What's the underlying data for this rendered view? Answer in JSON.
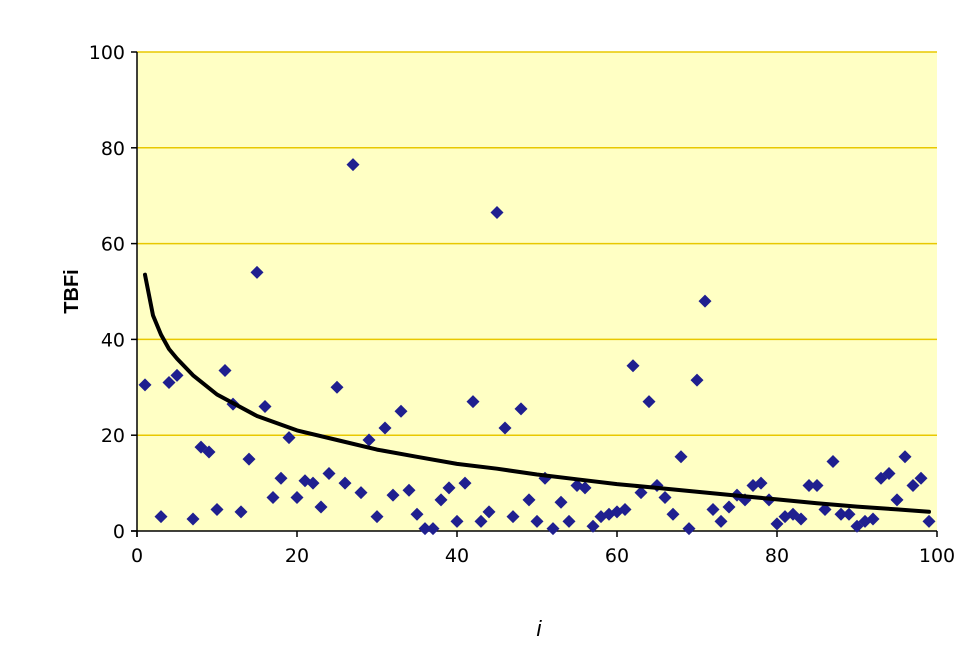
{
  "chart_data": {
    "type": "scatter",
    "title": "",
    "xlabel": "i",
    "ylabel": "TBFi",
    "xlim": [
      0,
      100
    ],
    "ylim": [
      0,
      100
    ],
    "xticks": [
      "0",
      "20",
      "40",
      "60",
      "80",
      "100"
    ],
    "yticks": [
      "0",
      "20",
      "40",
      "60",
      "80",
      "100"
    ],
    "grid": "horizontal",
    "colors": {
      "plot_background": "#FFFFC4",
      "gridline": "#E8C800",
      "marker": "#1F1F8F",
      "trend_line": "#000000"
    },
    "series": [
      {
        "type": "scatter",
        "marker": "diamond",
        "points": [
          [
            1,
            30.5
          ],
          [
            3,
            3
          ],
          [
            4,
            31
          ],
          [
            5,
            32.5
          ],
          [
            7,
            2.5
          ],
          [
            8,
            17.5
          ],
          [
            9,
            16.5
          ],
          [
            10,
            4.5
          ],
          [
            11,
            33.5
          ],
          [
            12,
            26.5
          ],
          [
            13,
            4
          ],
          [
            14,
            15
          ],
          [
            15,
            54
          ],
          [
            16,
            26
          ],
          [
            17,
            7
          ],
          [
            18,
            11
          ],
          [
            19,
            19.5
          ],
          [
            20,
            7
          ],
          [
            21,
            10.5
          ],
          [
            22,
            10
          ],
          [
            23,
            5
          ],
          [
            24,
            12
          ],
          [
            25,
            30
          ],
          [
            26,
            10
          ],
          [
            27,
            76.5
          ],
          [
            28,
            8
          ],
          [
            29,
            19
          ],
          [
            30,
            3
          ],
          [
            31,
            21.5
          ],
          [
            32,
            7.5
          ],
          [
            33,
            25
          ],
          [
            34,
            8.5
          ],
          [
            35,
            3.5
          ],
          [
            36,
            0.5
          ],
          [
            37,
            0.5
          ],
          [
            38,
            6.5
          ],
          [
            39,
            9
          ],
          [
            40,
            2
          ],
          [
            41,
            10
          ],
          [
            42,
            27
          ],
          [
            43,
            2
          ],
          [
            44,
            4
          ],
          [
            45,
            66.5
          ],
          [
            46,
            21.5
          ],
          [
            47,
            3
          ],
          [
            48,
            25.5
          ],
          [
            49,
            6.5
          ],
          [
            50,
            2
          ],
          [
            51,
            11
          ],
          [
            52,
            0.5
          ],
          [
            53,
            6
          ],
          [
            54,
            2
          ],
          [
            55,
            9.5
          ],
          [
            56,
            9
          ],
          [
            57,
            1
          ],
          [
            58,
            3
          ],
          [
            59,
            3.5
          ],
          [
            60,
            4
          ],
          [
            61,
            4.5
          ],
          [
            62,
            34.5
          ],
          [
            63,
            8
          ],
          [
            64,
            27
          ],
          [
            65,
            9.5
          ],
          [
            66,
            7
          ],
          [
            67,
            3.5
          ],
          [
            68,
            15.5
          ],
          [
            69,
            0.5
          ],
          [
            70,
            31.5
          ],
          [
            71,
            48
          ],
          [
            72,
            4.5
          ],
          [
            73,
            2
          ],
          [
            74,
            5
          ],
          [
            75,
            7.5
          ],
          [
            76,
            6.5
          ],
          [
            77,
            9.5
          ],
          [
            78,
            10
          ],
          [
            79,
            6.5
          ],
          [
            80,
            1.5
          ],
          [
            81,
            3
          ],
          [
            82,
            3.5
          ],
          [
            83,
            2.5
          ],
          [
            84,
            9.5
          ],
          [
            85,
            9.5
          ],
          [
            86,
            4.5
          ],
          [
            87,
            14.5
          ],
          [
            88,
            3.5
          ],
          [
            89,
            3.5
          ],
          [
            90,
            1
          ],
          [
            91,
            2
          ],
          [
            92,
            2.5
          ],
          [
            93,
            11
          ],
          [
            94,
            12
          ],
          [
            95,
            6.5
          ],
          [
            96,
            15.5
          ],
          [
            97,
            9.5
          ],
          [
            98,
            11
          ],
          [
            99,
            2
          ]
        ]
      },
      {
        "type": "line",
        "points": [
          [
            1,
            53.5
          ],
          [
            2,
            45
          ],
          [
            3,
            41
          ],
          [
            4,
            38
          ],
          [
            5,
            36
          ],
          [
            7,
            32.5
          ],
          [
            10,
            28.5
          ],
          [
            15,
            24
          ],
          [
            20,
            21
          ],
          [
            25,
            19
          ],
          [
            30,
            17
          ],
          [
            35,
            15.5
          ],
          [
            40,
            14
          ],
          [
            45,
            13
          ],
          [
            50,
            11.8
          ],
          [
            55,
            10.8
          ],
          [
            60,
            9.8
          ],
          [
            65,
            9
          ],
          [
            70,
            8.2
          ],
          [
            75,
            7.4
          ],
          [
            80,
            6.6
          ],
          [
            85,
            5.8
          ],
          [
            90,
            5.1
          ],
          [
            95,
            4.5
          ],
          [
            99,
            4
          ]
        ]
      }
    ]
  }
}
